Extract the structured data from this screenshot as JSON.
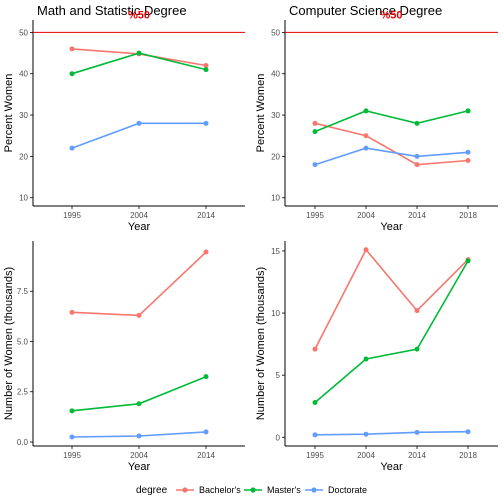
{
  "colors": {
    "Bachelor's": "#f8766d",
    "Master's": "#00ba38",
    "Doctorate": "#619cff",
    "reference": "#e60000",
    "axis": "#000000",
    "tick_text": "#4d4d4d"
  },
  "legend": {
    "title": "degree",
    "position": "bottom",
    "items": [
      "Bachelor's",
      "Master's",
      "Doctorate"
    ]
  },
  "chart_data": [
    {
      "type": "line",
      "title": "Math and Statistic Degree",
      "xlabel": "Year",
      "ylabel": "Percent Women",
      "x": [
        "1995",
        "2004",
        "2014"
      ],
      "ylim": [
        8,
        53
      ],
      "yticks": [
        10,
        20,
        30,
        40,
        50
      ],
      "ytick_labels": [
        "10",
        "20",
        "30",
        "40",
        "50"
      ],
      "reference_line": {
        "y": 50,
        "label": "%50"
      },
      "series": [
        {
          "name": "Bachelor's",
          "values": [
            46,
            44.8,
            42
          ]
        },
        {
          "name": "Master's",
          "values": [
            40,
            45,
            41
          ]
        },
        {
          "name": "Doctorate",
          "values": [
            22,
            28,
            28
          ]
        }
      ]
    },
    {
      "type": "line",
      "title": "Computer Science Degree",
      "xlabel": "Year",
      "ylabel": "Percent Women",
      "x": [
        "1995",
        "2004",
        "2014",
        "2018"
      ],
      "ylim": [
        8,
        53
      ],
      "yticks": [
        10,
        20,
        30,
        40,
        50
      ],
      "ytick_labels": [
        "10",
        "20",
        "30",
        "40",
        "50"
      ],
      "reference_line": {
        "y": 50,
        "label": "%50"
      },
      "series": [
        {
          "name": "Bachelor's",
          "values": [
            28,
            25,
            18,
            19
          ]
        },
        {
          "name": "Master's",
          "values": [
            26,
            31,
            28,
            31
          ]
        },
        {
          "name": "Doctorate",
          "values": [
            18,
            22,
            20,
            21
          ]
        }
      ]
    },
    {
      "type": "line",
      "title": "",
      "xlabel": "Year",
      "ylabel": "Number of Women (thousands)",
      "x": [
        "1995",
        "2004",
        "2014"
      ],
      "ylim": [
        -0.2,
        10
      ],
      "yticks": [
        0,
        2.5,
        5,
        7.5
      ],
      "ytick_labels": [
        "0.0",
        "2.5",
        "5.0",
        "7.5"
      ],
      "series": [
        {
          "name": "Bachelor's",
          "values": [
            6.45,
            6.3,
            9.45
          ]
        },
        {
          "name": "Master's",
          "values": [
            1.55,
            1.9,
            3.25
          ]
        },
        {
          "name": "Doctorate",
          "values": [
            0.25,
            0.3,
            0.5
          ]
        }
      ]
    },
    {
      "type": "line",
      "title": "",
      "xlabel": "Year",
      "ylabel": "Number of Women (thousands)",
      "x": [
        "1995",
        "2004",
        "2014",
        "2018"
      ],
      "ylim": [
        -0.7,
        15.8
      ],
      "yticks": [
        0,
        5,
        10,
        15
      ],
      "ytick_labels": [
        "0",
        "5",
        "10",
        "15"
      ],
      "series": [
        {
          "name": "Bachelor's",
          "values": [
            7.1,
            15.1,
            10.2,
            14.3
          ]
        },
        {
          "name": "Master's",
          "values": [
            2.8,
            6.3,
            7.1,
            14.2
          ]
        },
        {
          "name": "Doctorate",
          "values": [
            0.2,
            0.25,
            0.4,
            0.45
          ]
        }
      ]
    }
  ]
}
